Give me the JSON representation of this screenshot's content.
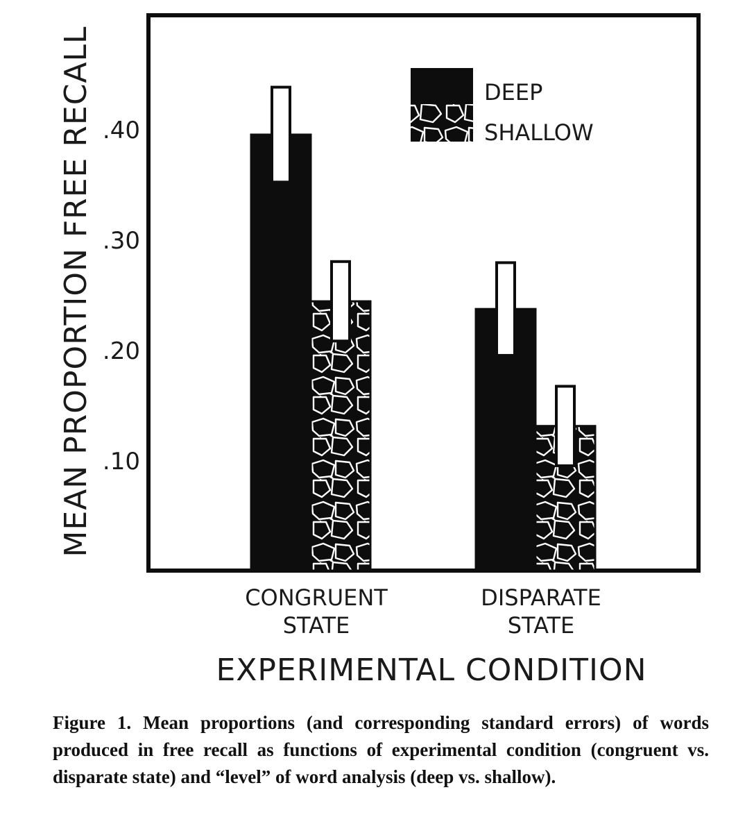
{
  "chart_data": {
    "type": "bar",
    "title": "",
    "ylabel": "MEAN PROPORTION FREE RECALL",
    "xlabel": "EXPERIMENTAL CONDITION",
    "categories": [
      [
        "CONGRUENT",
        "STATE"
      ],
      [
        "DISPARATE",
        "STATE"
      ]
    ],
    "ylim": [
      0,
      0.5
    ],
    "yticks": [
      0.1,
      0.2,
      0.3,
      0.4
    ],
    "ytick_labels": [
      ".10",
      ".20",
      ".30",
      ".40"
    ],
    "series": [
      {
        "name": "DEEP",
        "fill": "solid",
        "values": [
          0.395,
          0.237
        ],
        "errors": [
          0.043,
          0.042
        ]
      },
      {
        "name": "SHALLOW",
        "fill": "cobblestone",
        "values": [
          0.244,
          0.131
        ],
        "errors": [
          0.036,
          0.036
        ]
      }
    ],
    "legend_position": "top-right",
    "grid": false
  },
  "colors": {
    "ink": "#0d0d0d",
    "paper": "#ffffff",
    "text": "#1a1a1a"
  },
  "caption": {
    "lead": "Figure 1.",
    "text": "Mean proportions (and corresponding standard errors) of words produced in free recall as functions of experimental condition (congruent vs. disparate state) and “level” of word analysis (deep vs. shallow)."
  }
}
